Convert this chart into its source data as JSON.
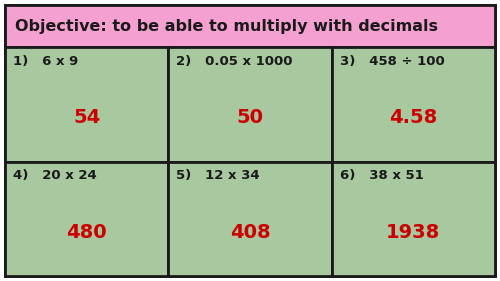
{
  "title": "Objective: to be able to multiply with decimals",
  "title_bg": "#f4a0d0",
  "cell_bg": "#a8c8a0",
  "border_color": "#1a1a1a",
  "outer_bg": "#ffffff",
  "questions": [
    {
      "num": "1)",
      "q": "6 x 9",
      "a": "54"
    },
    {
      "num": "2)",
      "q": "0.05 x 1000",
      "a": "50"
    },
    {
      "num": "3)",
      "q": "458 ÷ 100",
      "a": "4.58"
    },
    {
      "num": "4)",
      "q": "20 x 24",
      "a": "480"
    },
    {
      "num": "5)",
      "q": "12 x 34",
      "a": "408"
    },
    {
      "num": "6)",
      "q": "38 x 51",
      "a": "1938"
    }
  ],
  "q_color": "#1a1a1a",
  "a_color": "#cc0000",
  "title_fontsize": 11.5,
  "q_fontsize": 9.5,
  "a_fontsize": 14,
  "fig_width": 5.0,
  "fig_height": 2.81,
  "dpi": 100
}
